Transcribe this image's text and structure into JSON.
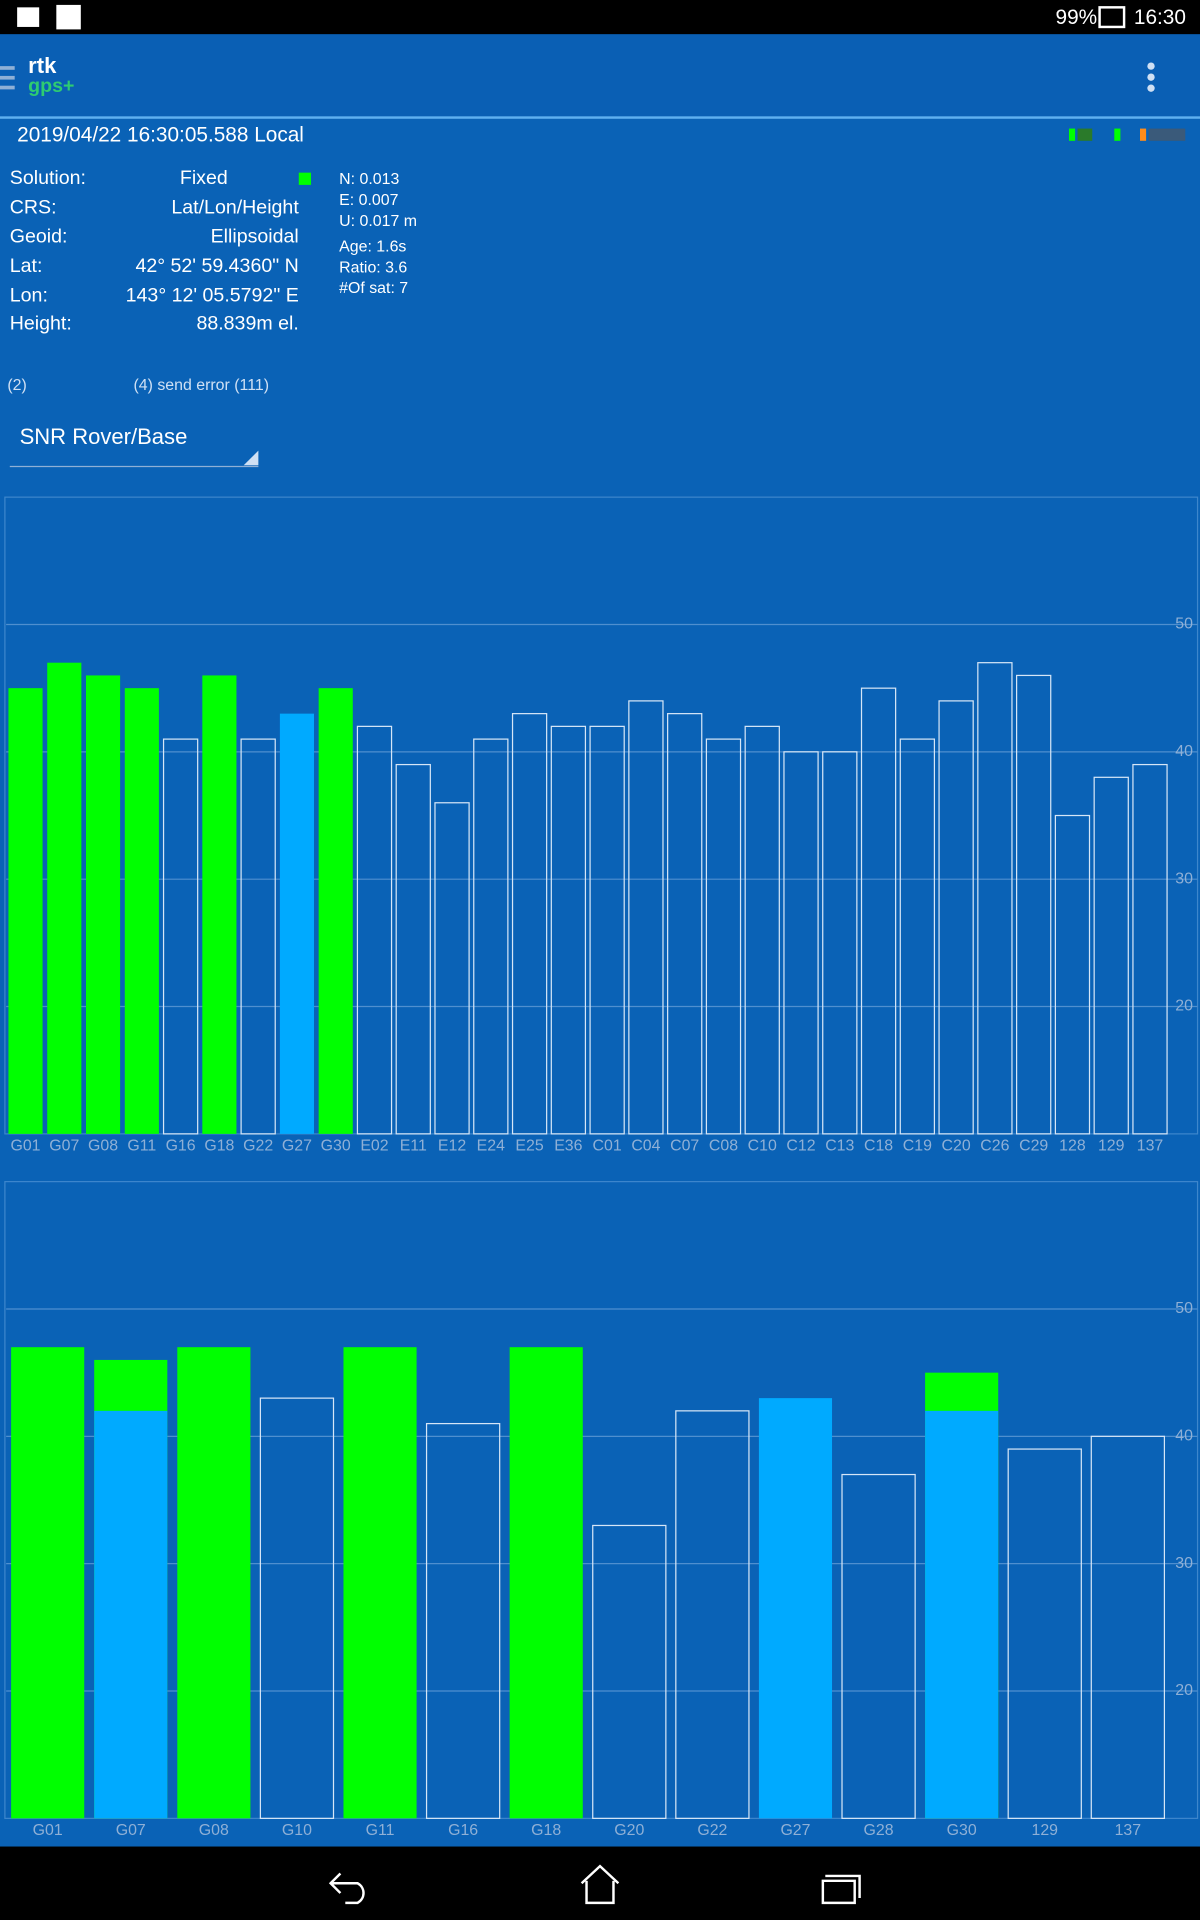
{
  "status_bar": {
    "battery": "99%",
    "time": "16:30"
  },
  "app_bar": {
    "logo_top": "rtk",
    "logo_bottom": "gps+"
  },
  "timestamp": "2019/04/22 16:30:05.588 Local",
  "info": {
    "rows": [
      {
        "label": "Solution:",
        "value": "Fixed"
      },
      {
        "label": "CRS:",
        "value": "Lat/Lon/Height"
      },
      {
        "label": "Geoid:",
        "value": "Ellipsoidal"
      },
      {
        "label": "Lat:",
        "value": "42° 52' 59.4360\" N"
      },
      {
        "label": "Lon:",
        "value": "143° 12' 05.5792\" E"
      },
      {
        "label": "Height:",
        "value": "88.839m el."
      }
    ],
    "accuracy": [
      "N: 0.013",
      "E: 0.007",
      "U: 0.017 m",
      "Age: 1.6s",
      "Ratio: 3.6",
      "#Of sat: 7"
    ]
  },
  "link_status": {
    "left": "(2)",
    "right": "(4) send error (111)"
  },
  "dropdown": "SNR Rover/Base",
  "chart_data": [
    {
      "type": "bar",
      "categories": [
        "G01",
        "G07",
        "G08",
        "G11",
        "G16",
        "G18",
        "G22",
        "G27",
        "G30",
        "E02",
        "E11",
        "E12",
        "E24",
        "E25",
        "E36",
        "C01",
        "C04",
        "C07",
        "C08",
        "C10",
        "C12",
        "C13",
        "C18",
        "C19",
        "C20",
        "C26",
        "C29",
        "128",
        "129",
        "137"
      ],
      "series": [
        {
          "color": "#00ff00",
          "filled": true,
          "values": [
            45,
            47,
            46,
            45,
            null,
            46,
            null,
            null,
            45,
            null,
            null,
            null,
            null,
            null,
            null,
            null,
            null,
            null,
            null,
            null,
            null,
            null,
            null,
            null,
            null,
            null,
            null,
            null,
            null,
            null
          ]
        },
        {
          "color": "#00aaff",
          "filled": true,
          "values": [
            null,
            null,
            null,
            null,
            null,
            null,
            null,
            43,
            null,
            null,
            null,
            null,
            null,
            null,
            null,
            null,
            null,
            null,
            null,
            null,
            null,
            null,
            null,
            null,
            null,
            null,
            null,
            null,
            null,
            null
          ]
        },
        {
          "color": "#d6e6f7",
          "filled": false,
          "values": [
            null,
            null,
            null,
            null,
            41,
            null,
            41,
            null,
            null,
            42,
            39,
            36,
            41,
            43,
            42,
            42,
            44,
            43,
            41,
            42,
            40,
            40,
            45,
            41,
            44,
            47,
            46,
            35,
            38,
            39
          ]
        }
      ],
      "ylim": [
        10,
        60
      ],
      "yticks": [
        20,
        30,
        40,
        50
      ],
      "grid": true
    },
    {
      "type": "bar",
      "categories": [
        "G01",
        "G07",
        "G08",
        "G10",
        "G11",
        "G16",
        "G18",
        "G20",
        "G22",
        "G27",
        "G28",
        "G30",
        "129",
        "137"
      ],
      "series": [
        {
          "color": "#00ff00",
          "filled": true,
          "values": [
            47,
            46,
            47,
            null,
            47,
            null,
            47,
            null,
            null,
            null,
            null,
            45,
            null,
            null
          ]
        },
        {
          "color": "#00aaff",
          "filled": true,
          "values": [
            null,
            42,
            null,
            null,
            null,
            null,
            null,
            null,
            null,
            43,
            null,
            42,
            null,
            null
          ]
        },
        {
          "color": "#d6e6f7",
          "filled": false,
          "values": [
            null,
            null,
            null,
            43,
            null,
            41,
            null,
            33,
            42,
            null,
            37,
            null,
            39,
            40
          ]
        }
      ],
      "ylim": [
        10,
        60
      ],
      "yticks": [
        20,
        30,
        40,
        50
      ],
      "grid": true
    }
  ]
}
